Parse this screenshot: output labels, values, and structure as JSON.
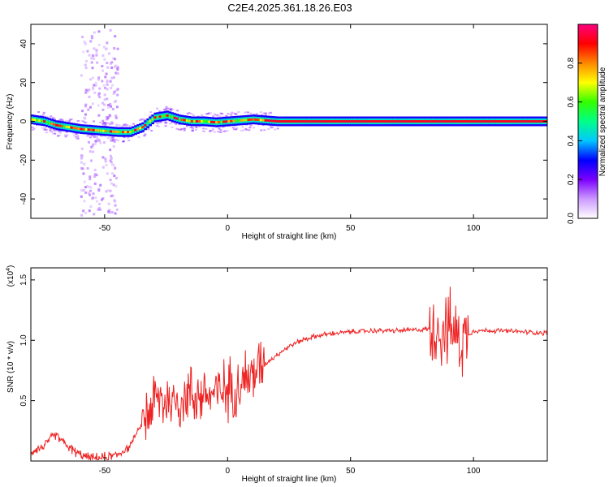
{
  "title": "C2E4.2025.361.18.26.E03",
  "chart_data": [
    {
      "type": "heatmap",
      "xlabel": "Height of straight line (km)",
      "ylabel": "Frequency (Hz)",
      "xlim": [
        -80,
        130
      ],
      "ylim": [
        -50,
        50
      ],
      "xticks": [
        -50,
        0,
        50,
        100
      ],
      "yticks": [
        -40,
        -20,
        0,
        20,
        40
      ],
      "ridge": {
        "x": [
          -80,
          -75,
          -70,
          -65,
          -60,
          -55,
          -50,
          -45,
          -40,
          -35,
          -30,
          -25,
          -20,
          -15,
          -10,
          -5,
          0,
          5,
          10,
          15,
          20,
          40,
          60,
          80,
          100,
          130
        ],
        "y": [
          1,
          0,
          -2,
          -3,
          -4,
          -4.5,
          -5,
          -5.5,
          -5.5,
          -3,
          2,
          3,
          1,
          0,
          0,
          -0.5,
          0,
          0.5,
          1,
          0.5,
          0,
          0,
          0,
          0,
          0,
          0
        ]
      },
      "colorbar": {
        "label": "Normalized spectral amplitude",
        "range": [
          0.0,
          1.0
        ],
        "ticks": [
          "0.0",
          "0.2",
          "0.4",
          "0.6",
          "0.8"
        ],
        "colors": [
          "#ffffff",
          "#cc99ff",
          "#7a00ff",
          "#0000ff",
          "#00c8ff",
          "#00ff88",
          "#33ff00",
          "#ffff00",
          "#ff8800",
          "#ff0000",
          "#ff0080"
        ]
      }
    },
    {
      "type": "line",
      "xlabel": "Height of straight line (km)",
      "ylabel": "SNR (10 * v/v)",
      "yscale_label": "(x10",
      "yscale_exp": "4",
      "yscale_close": ")",
      "xlim": [
        -80,
        130
      ],
      "ylim": [
        0,
        1.6
      ],
      "xticks": [
        -50,
        0,
        50,
        100
      ],
      "yticks": [
        "0.5",
        "1.0",
        "1.5"
      ],
      "color": "#ee2222",
      "series": [
        {
          "x": [
            -80,
            -75,
            -70,
            -65,
            -60,
            -55,
            -50,
            -45,
            -40,
            -35,
            -30,
            -25,
            -20,
            -15,
            -10,
            -5,
            0,
            5,
            10,
            15,
            20,
            25,
            30,
            35,
            40,
            50,
            60,
            70,
            80,
            85,
            90,
            95,
            100,
            110,
            120,
            130
          ],
          "y": [
            0.08,
            0.12,
            0.22,
            0.12,
            0.05,
            0.02,
            0.03,
            0.05,
            0.12,
            0.3,
            0.5,
            0.5,
            0.5,
            0.55,
            0.55,
            0.55,
            0.6,
            0.65,
            0.72,
            0.8,
            0.88,
            0.95,
            1.0,
            1.03,
            1.05,
            1.07,
            1.08,
            1.08,
            1.09,
            1.1,
            1.1,
            1.0,
            1.08,
            1.08,
            1.07,
            1.06
          ]
        }
      ]
    }
  ]
}
